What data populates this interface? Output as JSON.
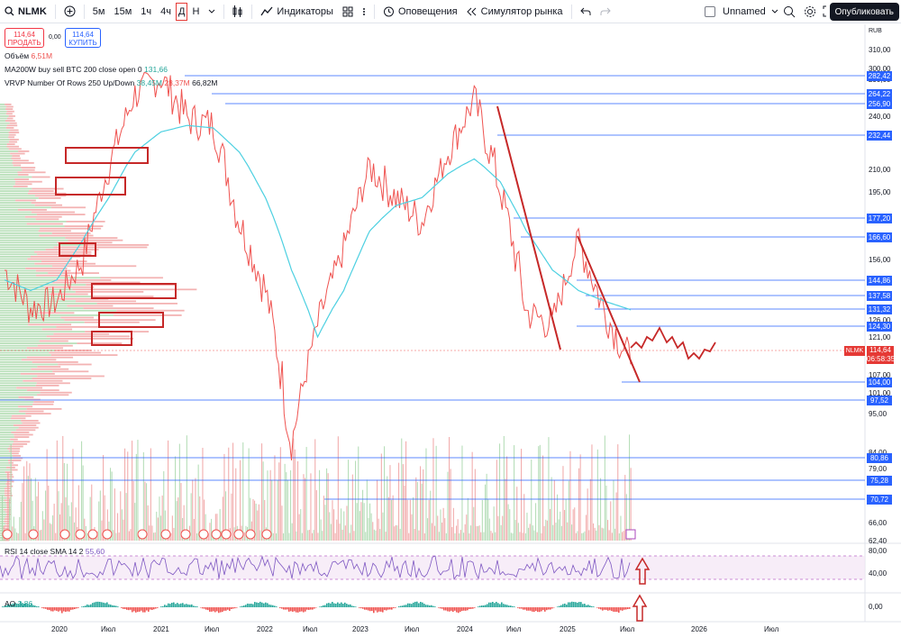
{
  "toolbar": {
    "symbol": "NLMK",
    "timeframes": [
      "5м",
      "15м",
      "1ч",
      "4ч",
      "Д",
      "Н"
    ],
    "active_timeframe": "Д",
    "indicators_label": "Индикаторы",
    "alerts_label": "Оповещения",
    "replay_label": "Симулятор рынка",
    "layout_name": "Unnamed",
    "publish_label": "Опубликовать"
  },
  "quote": {
    "sell_price": "114,64",
    "sell_label": "ПРОДАТЬ",
    "spread": "0,00",
    "buy_price": "114,64",
    "buy_label": "КУПИТЬ"
  },
  "legends": {
    "volume_label": "Объём",
    "volume_value": "6,51M",
    "ma_label": "MA200W buy sell BTC 200 close open 0",
    "ma_value": "131,66",
    "vrvp_label": "VRVP Number Of Rows 250 Up/Down",
    "vrvp_up": "38,45M",
    "vrvp_down": "28,37M",
    "vrvp_total": "66,82M",
    "rsi_label": "RSI 14 close SMA 14 2",
    "rsi_value": "55,60",
    "ao_label": "AO",
    "ao_value": "3,86"
  },
  "price_axis": {
    "currency": "RUB",
    "ticks": [
      "310,00",
      "300,00",
      "290,00",
      "270,00",
      "250,00",
      "240,00",
      "220,00",
      "210,00",
      "195,00",
      "180,00",
      "156,00",
      "126,00",
      "121,00",
      "107,00",
      "101,00",
      "95,00",
      "84,00",
      "79,00",
      "66,00",
      "62,40"
    ],
    "level_tags": [
      "282,42",
      "264,22",
      "256,90",
      "232,44",
      "177,20",
      "166,60",
      "144,86",
      "137,58",
      "131,32",
      "124,30",
      "104,00",
      "97,52",
      "80,86",
      "75,28",
      "70,72"
    ],
    "last_symbol": "NLMK",
    "last_price": "114,64",
    "countdown": "06:58:35"
  },
  "rsi_axis": {
    "ticks": [
      "80,00",
      "40,00"
    ]
  },
  "ao_axis": {
    "ticks": [
      "0,00"
    ]
  },
  "time_axis": {
    "labels": [
      "2020",
      "Июл",
      "2021",
      "Июл",
      "2022",
      "Июл",
      "2023",
      "Июл",
      "2024",
      "Июл",
      "2025",
      "Июл",
      "2026",
      "Июл"
    ]
  },
  "colors": {
    "up": "#26a69a",
    "down": "#ef5350",
    "ma_line": "#4dd0e1",
    "annotation": "#c62828",
    "level_line": "#2962ff"
  },
  "chart_data": {
    "type": "line",
    "x": [
      "2020-01",
      "2020-04",
      "2020-07",
      "2020-10",
      "2021-01",
      "2021-04",
      "2021-06",
      "2021-09",
      "2022-01",
      "2022-03",
      "2022-06",
      "2022-10",
      "2023-01",
      "2023-04",
      "2023-07",
      "2023-10",
      "2024-01",
      "2024-04",
      "2024-06",
      "2024-09",
      "2024-11",
      "2025-01",
      "2025-03",
      "2025-05",
      "2025-07"
    ],
    "series": [
      {
        "values": [
          150,
          132,
          135,
          155,
          210,
          265,
          280,
          245,
          240,
          175,
          140,
          85,
          125,
          160,
          210,
          190,
          175,
          220,
          260,
          195,
          130,
          125,
          165,
          130,
          110
        ]
      },
      {
        "values": [
          145,
          140,
          145,
          165,
          190,
          220,
          235,
          240,
          238,
          220,
          190,
          150,
          120,
          140,
          170,
          185,
          190,
          205,
          215,
          200,
          170,
          150,
          140,
          135,
          131
        ]
      }
    ],
    "ylim": [
      62.4,
      310
    ]
  }
}
